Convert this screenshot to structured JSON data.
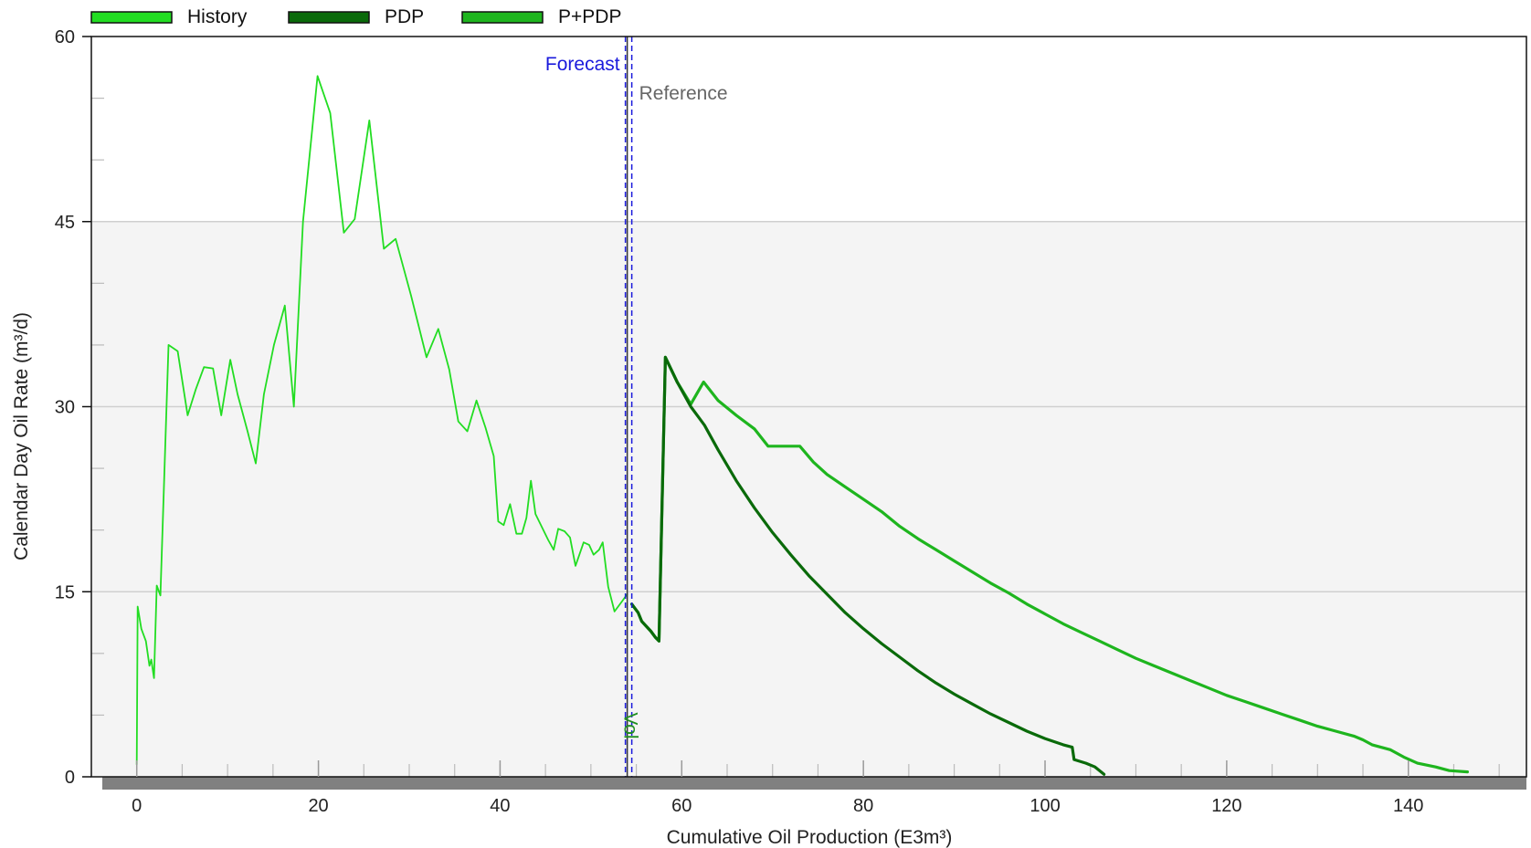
{
  "chart_data": {
    "type": "line",
    "title": "",
    "xlabel": "Cumulative Oil Production (E3m³)",
    "ylabel": "Calendar Day Oil Rate (m³/d)",
    "xlim": [
      -5,
      153
    ],
    "ylim": [
      0,
      60
    ],
    "x_ticks": [
      0,
      20,
      40,
      60,
      80,
      100,
      120,
      140
    ],
    "y_ticks": [
      0,
      15,
      30,
      45,
      60
    ],
    "legend_position": "top-left",
    "grid": true,
    "markers": {
      "forecast": {
        "label": "Forecast",
        "x": 54.0,
        "color": "#1a1adc"
      },
      "reference": {
        "label": "Reference",
        "x": 54.3,
        "color": "#666666"
      },
      "vol": {
        "label": "Vol",
        "x": 54.3,
        "color": "#1f8f1f"
      }
    },
    "series": [
      {
        "name": "History",
        "color": "#22dd22",
        "points": [
          [
            0.0,
            1.0
          ],
          [
            0.1,
            13.8
          ],
          [
            0.5,
            12.0
          ],
          [
            1.0,
            11.0
          ],
          [
            1.4,
            9.0
          ],
          [
            1.6,
            9.5
          ],
          [
            1.9,
            8.0
          ],
          [
            2.2,
            15.5
          ],
          [
            2.6,
            14.7
          ],
          [
            3.5,
            35.0
          ],
          [
            4.5,
            34.5
          ],
          [
            5.6,
            29.3
          ],
          [
            6.5,
            31.4
          ],
          [
            7.4,
            33.2
          ],
          [
            8.4,
            33.1
          ],
          [
            9.3,
            29.3
          ],
          [
            10.3,
            33.8
          ],
          [
            11.1,
            31.0
          ],
          [
            12.2,
            28.0
          ],
          [
            13.1,
            25.4
          ],
          [
            14.0,
            31.0
          ],
          [
            15.1,
            35.0
          ],
          [
            16.3,
            38.2
          ],
          [
            17.3,
            30.0
          ],
          [
            18.3,
            45.0
          ],
          [
            19.9,
            56.8
          ],
          [
            21.3,
            53.8
          ],
          [
            22.8,
            44.1
          ],
          [
            24.0,
            45.2
          ],
          [
            25.6,
            53.2
          ],
          [
            27.2,
            42.8
          ],
          [
            28.5,
            43.6
          ],
          [
            30.2,
            39.0
          ],
          [
            31.9,
            34.0
          ],
          [
            33.2,
            36.3
          ],
          [
            34.4,
            33.0
          ],
          [
            35.4,
            28.8
          ],
          [
            36.4,
            28.0
          ],
          [
            37.4,
            30.5
          ],
          [
            38.4,
            28.3
          ],
          [
            39.3,
            26.0
          ],
          [
            39.8,
            20.7
          ],
          [
            40.4,
            20.4
          ],
          [
            41.1,
            22.1
          ],
          [
            41.8,
            19.7
          ],
          [
            42.4,
            19.7
          ],
          [
            42.9,
            21.0
          ],
          [
            43.4,
            24.0
          ],
          [
            43.9,
            21.3
          ],
          [
            45.3,
            19.2
          ],
          [
            45.9,
            18.4
          ],
          [
            46.4,
            20.1
          ],
          [
            47.1,
            19.9
          ],
          [
            47.7,
            19.4
          ],
          [
            48.3,
            17.1
          ],
          [
            49.2,
            19.0
          ],
          [
            49.8,
            18.8
          ],
          [
            50.3,
            18.0
          ],
          [
            50.9,
            18.4
          ],
          [
            51.3,
            19.0
          ],
          [
            51.9,
            15.4
          ],
          [
            52.6,
            13.4
          ],
          [
            53.4,
            14.2
          ],
          [
            54.0,
            14.8
          ]
        ]
      },
      {
        "name": "PDP",
        "color": "#0a6a0a",
        "points": [
          [
            54.5,
            14.0
          ],
          [
            55.2,
            13.3
          ],
          [
            55.6,
            12.6
          ],
          [
            56.6,
            11.8
          ],
          [
            57.1,
            11.3
          ],
          [
            57.5,
            11.0
          ],
          [
            58.2,
            34.0
          ],
          [
            59.5,
            32.0
          ],
          [
            61.0,
            30.0
          ],
          [
            62.5,
            28.5
          ],
          [
            64.0,
            26.5
          ],
          [
            66.0,
            24.0
          ],
          [
            68.0,
            21.8
          ],
          [
            70.0,
            19.8
          ],
          [
            72.0,
            18.0
          ],
          [
            74.0,
            16.3
          ],
          [
            76.0,
            14.8
          ],
          [
            78.0,
            13.3
          ],
          [
            80.0,
            12.0
          ],
          [
            82.0,
            10.8
          ],
          [
            84.0,
            9.7
          ],
          [
            86.0,
            8.6
          ],
          [
            88.0,
            7.6
          ],
          [
            90.0,
            6.7
          ],
          [
            92.0,
            5.9
          ],
          [
            94.0,
            5.1
          ],
          [
            96.0,
            4.4
          ],
          [
            98.0,
            3.7
          ],
          [
            100.0,
            3.1
          ],
          [
            102.0,
            2.6
          ],
          [
            103.0,
            2.4
          ],
          [
            103.2,
            1.4
          ],
          [
            104.5,
            1.1
          ],
          [
            105.5,
            0.8
          ],
          [
            106.5,
            0.2
          ]
        ]
      },
      {
        "name": "P+PDP",
        "color": "#1eb51e",
        "points": [
          [
            54.5,
            14.0
          ],
          [
            55.2,
            13.3
          ],
          [
            55.6,
            12.6
          ],
          [
            56.6,
            11.8
          ],
          [
            57.1,
            11.3
          ],
          [
            57.5,
            11.0
          ],
          [
            58.2,
            34.0
          ],
          [
            59.5,
            32.0
          ],
          [
            61.0,
            30.2
          ],
          [
            62.4,
            32.0
          ],
          [
            64.0,
            30.5
          ],
          [
            66.0,
            29.3
          ],
          [
            68.0,
            28.2
          ],
          [
            69.5,
            26.8
          ],
          [
            73.0,
            26.8
          ],
          [
            74.5,
            25.5
          ],
          [
            76.0,
            24.5
          ],
          [
            78.0,
            23.5
          ],
          [
            80.0,
            22.5
          ],
          [
            82.0,
            21.5
          ],
          [
            84.0,
            20.3
          ],
          [
            86.0,
            19.3
          ],
          [
            88.0,
            18.4
          ],
          [
            90.0,
            17.5
          ],
          [
            92.0,
            16.6
          ],
          [
            94.0,
            15.7
          ],
          [
            96.0,
            14.9
          ],
          [
            98.0,
            14.0
          ],
          [
            100.0,
            13.2
          ],
          [
            102.0,
            12.4
          ],
          [
            104.0,
            11.7
          ],
          [
            106.0,
            11.0
          ],
          [
            108.0,
            10.3
          ],
          [
            110.0,
            9.6
          ],
          [
            112.0,
            9.0
          ],
          [
            114.0,
            8.4
          ],
          [
            116.0,
            7.8
          ],
          [
            118.0,
            7.2
          ],
          [
            120.0,
            6.6
          ],
          [
            122.0,
            6.1
          ],
          [
            124.0,
            5.6
          ],
          [
            126.0,
            5.1
          ],
          [
            128.0,
            4.6
          ],
          [
            130.0,
            4.1
          ],
          [
            132.0,
            3.7
          ],
          [
            134.0,
            3.3
          ],
          [
            135.0,
            3.0
          ],
          [
            136.0,
            2.6
          ],
          [
            138.0,
            2.2
          ],
          [
            139.5,
            1.6
          ],
          [
            141.0,
            1.1
          ],
          [
            143.0,
            0.8
          ],
          [
            144.5,
            0.5
          ],
          [
            146.5,
            0.4
          ]
        ]
      }
    ]
  }
}
